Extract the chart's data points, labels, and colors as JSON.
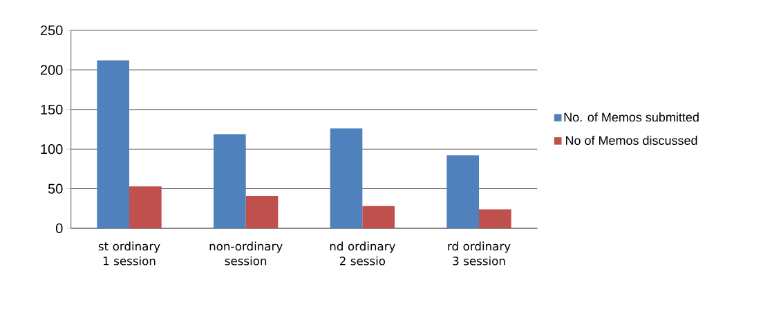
{
  "chart_data": {
    "type": "bar",
    "categories": [
      "st ordinary 1 session",
      "non-ordinary session",
      "nd ordinary 2 sessio",
      "rd ordinary 3 session"
    ],
    "series": [
      {
        "name": "No. of Memos submitted",
        "color": "#4f81bd",
        "values": [
          212,
          119,
          126,
          92
        ]
      },
      {
        "name": "No of Memos discussed",
        "color": "#c0504d",
        "values": [
          53,
          41,
          28,
          24
        ]
      }
    ],
    "ylim": [
      0,
      250
    ],
    "yticks": [
      0,
      50,
      100,
      150,
      200,
      250
    ],
    "grid": "y",
    "legend": "right"
  }
}
